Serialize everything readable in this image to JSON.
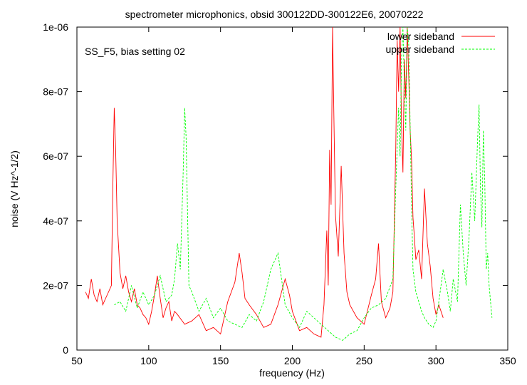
{
  "chart_data": {
    "type": "line",
    "title": "spectrometer microphonics, obsid 300122DD-300122E6, 20070222",
    "annotation": "SS_F5, bias setting 02",
    "xlabel": "frequency (Hz)",
    "ylabel": "noise (V Hz^-1/2)",
    "xlim": [
      50,
      350
    ],
    "ylim": [
      0,
      1e-06
    ],
    "x_ticks": [
      50,
      100,
      150,
      200,
      250,
      300,
      350
    ],
    "x_tick_labels": [
      "50",
      "100",
      "150",
      "200",
      "250",
      "300",
      "350"
    ],
    "y_ticks": [
      0,
      2e-07,
      4e-07,
      6e-07,
      8e-07,
      1e-06
    ],
    "y_tick_labels": [
      "0",
      "2e-07",
      "4e-07",
      "6e-07",
      "8e-07",
      "1e-06"
    ],
    "grid": false,
    "legend_position": "top-right",
    "series": [
      {
        "name": "lower sideband",
        "color": "#ff0000",
        "dash": "solid",
        "x": [
          56,
          58,
          60,
          62,
          64,
          66,
          68,
          70,
          72,
          74,
          75,
          76,
          77,
          78,
          79,
          80,
          82,
          84,
          86,
          88,
          90,
          92,
          94,
          96,
          98,
          100,
          102,
          104,
          106,
          108,
          110,
          112,
          114,
          116,
          118,
          120,
          125,
          130,
          135,
          140,
          145,
          150,
          155,
          160,
          163,
          165,
          167,
          170,
          175,
          180,
          185,
          190,
          195,
          198,
          200,
          205,
          210,
          215,
          220,
          222,
          224,
          225,
          226,
          227,
          228,
          229,
          230,
          232,
          234,
          236,
          238,
          240,
          245,
          250,
          255,
          258,
          260,
          262,
          265,
          268,
          270,
          272,
          273,
          274,
          275,
          276,
          277,
          278,
          279,
          280,
          281,
          282,
          283,
          284,
          285,
          286,
          288,
          290,
          292,
          294,
          296,
          298,
          300,
          302,
          305
        ],
        "y": [
          1.8e-07,
          1.6e-07,
          2.2e-07,
          1.7e-07,
          1.5e-07,
          1.9e-07,
          1.4e-07,
          1.6e-07,
          1.8e-07,
          2e-07,
          5e-07,
          7.5e-07,
          6.2e-07,
          4e-07,
          3.2e-07,
          2.4e-07,
          1.9e-07,
          2.3e-07,
          1.8e-07,
          1.5e-07,
          1.9e-07,
          1.4e-07,
          1.3e-07,
          1.1e-07,
          1e-07,
          8e-08,
          1.2e-07,
          1.7e-07,
          2.3e-07,
          1.6e-07,
          1e-07,
          1.3e-07,
          1.5e-07,
          9e-08,
          1.2e-07,
          1.1e-07,
          8e-08,
          9e-08,
          1.1e-07,
          6e-08,
          7e-08,
          5e-08,
          1.5e-07,
          2.1e-07,
          3e-07,
          2.4e-07,
          1.6e-07,
          1.4e-07,
          1.1e-07,
          7e-08,
          8e-08,
          1.4e-07,
          2.2e-07,
          1.7e-07,
          1.2e-07,
          6e-08,
          7e-08,
          5e-08,
          4e-08,
          1.4e-07,
          3.7e-07,
          2e-07,
          6.2e-07,
          4.5e-07,
          1e-06,
          7e-07,
          4.2e-07,
          2.9e-07,
          5.7e-07,
          3e-07,
          1.8e-07,
          1.4e-07,
          1e-07,
          8e-08,
          1.7e-07,
          2.2e-07,
          3.3e-07,
          1.5e-07,
          1e-07,
          1.3e-07,
          1.8e-07,
          6.2e-07,
          9.6e-07,
          8e-07,
          1e-06,
          7e-07,
          5.5e-07,
          9e-07,
          7.8e-07,
          1e-06,
          8.5e-07,
          6.8e-07,
          5.9e-07,
          4.1e-07,
          3.5e-07,
          2.8e-07,
          3.1e-07,
          2.2e-07,
          5e-07,
          3.3e-07,
          2.6e-07,
          1.6e-07,
          1.1e-07,
          1.4e-07,
          1e-07
        ]
      },
      {
        "name": "upper sideband",
        "color": "#00ff00",
        "dash": "dashed",
        "x": [
          76,
          80,
          84,
          88,
          92,
          96,
          100,
          104,
          108,
          112,
          116,
          118,
          120,
          122,
          124,
          125,
          126,
          128,
          130,
          135,
          140,
          145,
          150,
          155,
          160,
          165,
          170,
          175,
          180,
          185,
          190,
          195,
          200,
          205,
          210,
          215,
          220,
          225,
          230,
          235,
          240,
          245,
          250,
          255,
          260,
          265,
          270,
          272,
          274,
          275,
          276,
          277,
          278,
          279,
          280,
          281,
          282,
          283,
          284,
          286,
          288,
          290,
          292,
          295,
          298,
          300,
          302,
          305,
          308,
          310,
          312,
          315,
          317,
          319,
          321,
          323,
          325,
          327,
          329,
          330,
          331,
          332,
          333,
          334,
          335,
          336,
          337,
          338,
          339
        ],
        "y": [
          1.4e-07,
          1.5e-07,
          1.2e-07,
          2e-07,
          1.3e-07,
          1.8e-07,
          1.4e-07,
          1.7e-07,
          2.3e-07,
          1.5e-07,
          1.7e-07,
          2.2e-07,
          3.3e-07,
          2.5e-07,
          5.5e-07,
          7.5e-07,
          6.6e-07,
          2e-07,
          1.8e-07,
          1.2e-07,
          1.6e-07,
          1e-07,
          1.3e-07,
          9e-08,
          8e-08,
          7e-08,
          1.1e-07,
          9e-08,
          1.5e-07,
          2.5e-07,
          3e-07,
          1.4e-07,
          1e-07,
          7e-08,
          1.2e-07,
          1e-07,
          8e-08,
          6e-08,
          4e-08,
          3e-08,
          5e-08,
          6e-08,
          1e-07,
          1.3e-07,
          1.4e-07,
          1.6e-07,
          2.2e-07,
          5e-07,
          7.5e-07,
          6e-07,
          9e-07,
          1e-06,
          8.2e-07,
          6.8e-07,
          1e-06,
          9.5e-07,
          7e-07,
          4.5e-07,
          2.5e-07,
          1.8e-07,
          1.5e-07,
          1.2e-07,
          1e-07,
          8e-08,
          7e-08,
          9e-08,
          1.5e-07,
          2.5e-07,
          1.8e-07,
          1.2e-07,
          2.2e-07,
          1.5e-07,
          4.5e-07,
          3e-07,
          2e-07,
          3.5e-07,
          5.5e-07,
          4e-07,
          6.5e-07,
          7.6e-07,
          5e-07,
          3.8e-07,
          6.8e-07,
          5.2e-07,
          2.5e-07,
          3e-07,
          2e-07,
          1.5e-07,
          1e-07
        ]
      }
    ]
  }
}
